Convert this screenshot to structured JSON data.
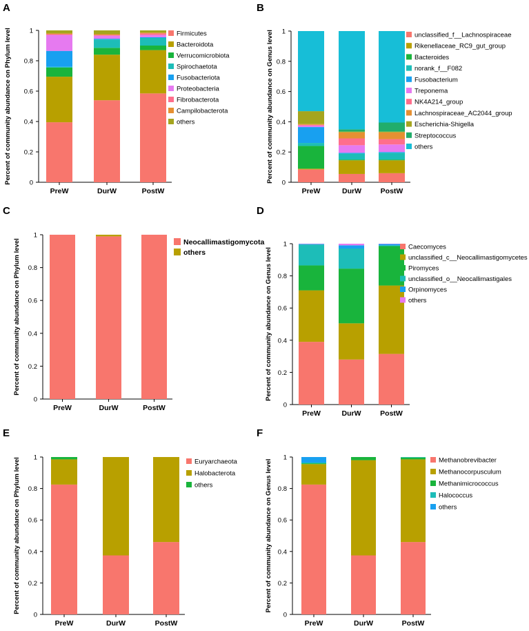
{
  "chart_data": [
    {
      "panel": "A",
      "type": "bar",
      "stacked": true,
      "ylabel": "Percent of community abundance on Phylum level",
      "ylim": [
        0,
        1
      ],
      "yticks": [
        "0",
        "0.2",
        "0.4",
        "0.6",
        "0.8",
        "1"
      ],
      "categories": [
        "PreW",
        "DurW",
        "PostW"
      ],
      "series": [
        {
          "name": "Firmicutes",
          "color": "#F8766D",
          "values": [
            0.395,
            0.54,
            0.585
          ]
        },
        {
          "name": "Bacteroidota",
          "color": "#B8A000",
          "values": [
            0.3,
            0.3,
            0.285
          ]
        },
        {
          "name": "Verrucomicrobiota",
          "color": "#19B43C",
          "values": [
            0.06,
            0.045,
            0.03
          ]
        },
        {
          "name": "Spirochaetota",
          "color": "#1DBDB8",
          "values": [
            0.005,
            0.055,
            0.05
          ]
        },
        {
          "name": "Fusobacteriota",
          "color": "#18A0F0",
          "values": [
            0.105,
            0.005,
            0.005
          ]
        },
        {
          "name": "Proteobacteria",
          "color": "#E67AF0",
          "values": [
            0.105,
            0.02,
            0.015
          ]
        },
        {
          "name": "Fibrobacterota",
          "color": "#FF6E8C",
          "values": [
            0.005,
            0.005,
            0.01
          ]
        },
        {
          "name": "Campilobacterota",
          "color": "#E69032",
          "values": [
            0.005,
            0.005,
            0.005
          ]
        },
        {
          "name": "others",
          "color": "#A5A51E",
          "values": [
            0.02,
            0.025,
            0.015
          ]
        }
      ]
    },
    {
      "panel": "B",
      "type": "bar",
      "stacked": true,
      "ylabel": "Percent of community abundance on Genus level",
      "ylim": [
        0,
        1
      ],
      "yticks": [
        "0",
        "0.2",
        "0.4",
        "0.6",
        "0.8",
        "1"
      ],
      "categories": [
        "PreW",
        "DurW",
        "PostW"
      ],
      "series": [
        {
          "name": "unclassified_f__Lachnospiraceae",
          "color": "#F8766D",
          "values": [
            0.085,
            0.055,
            0.06
          ]
        },
        {
          "name": "Rikenellaceae_RC9_gut_group",
          "color": "#B8A000",
          "values": [
            0.005,
            0.09,
            0.085
          ]
        },
        {
          "name": "Bacteroides",
          "color": "#19B43C",
          "values": [
            0.15,
            0.005,
            0.005
          ]
        },
        {
          "name": "norank_f__F082",
          "color": "#1DBDB8",
          "values": [
            0.02,
            0.04,
            0.045
          ]
        },
        {
          "name": "Fusobacterium",
          "color": "#18A0F0",
          "values": [
            0.105,
            0.005,
            0.005
          ]
        },
        {
          "name": "Treponema",
          "color": "#E67AF0",
          "values": [
            0.01,
            0.05,
            0.05
          ]
        },
        {
          "name": "NK4A214_group",
          "color": "#FF6E8C",
          "values": [
            0.005,
            0.045,
            0.035
          ]
        },
        {
          "name": "Lachnospiraceae_AC2044_group",
          "color": "#E69032",
          "values": [
            0.005,
            0.04,
            0.045
          ]
        },
        {
          "name": "Escherichia-Shigella",
          "color": "#A5A51E",
          "values": [
            0.085,
            0.005,
            0.005
          ]
        },
        {
          "name": "Streptococcus",
          "color": "#21AD6B",
          "values": [
            0.0,
            0.015,
            0.06
          ]
        },
        {
          "name": "others",
          "color": "#17BED7",
          "values": [
            0.53,
            0.65,
            0.605
          ]
        }
      ]
    },
    {
      "panel": "C",
      "type": "bar",
      "stacked": true,
      "ylabel": "Percent of community abundance on Phylum level",
      "ylim": [
        0,
        1
      ],
      "yticks": [
        "0",
        "0.2",
        "0.4",
        "0.6",
        "0.8",
        "1"
      ],
      "categories": [
        "PreW",
        "DurW",
        "PostW"
      ],
      "series": [
        {
          "name": "Neocallimastigomycota",
          "color": "#F8766D",
          "values": [
            1.0,
            0.99,
            1.0
          ]
        },
        {
          "name": "others",
          "color": "#B8A000",
          "values": [
            0.0,
            0.01,
            0.0
          ]
        }
      ]
    },
    {
      "panel": "D",
      "type": "bar",
      "stacked": true,
      "ylabel": "Percent of community abundance on Genus level",
      "ylim": [
        0,
        1
      ],
      "yticks": [
        "0",
        "0.2",
        "0.4",
        "0.6",
        "0.8",
        "1"
      ],
      "categories": [
        "PreW",
        "DurW",
        "PostW"
      ],
      "series": [
        {
          "name": "Caecomyces",
          "color": "#F8766D",
          "values": [
            0.39,
            0.28,
            0.315
          ]
        },
        {
          "name": "unclassified_c__Neocallimastigomycetes",
          "color": "#B8A000",
          "values": [
            0.32,
            0.225,
            0.425
          ]
        },
        {
          "name": "Piromyces",
          "color": "#19B43C",
          "values": [
            0.155,
            0.34,
            0.245
          ]
        },
        {
          "name": "unclassified_o__Neocallimastigales",
          "color": "#1DBDB8",
          "values": [
            0.13,
            0.125,
            0.005
          ]
        },
        {
          "name": "Orpinomyces",
          "color": "#18A0F0",
          "values": [
            0.003,
            0.02,
            0.008
          ]
        },
        {
          "name": "others",
          "color": "#E67AF0",
          "values": [
            0.002,
            0.01,
            0.002
          ]
        }
      ]
    },
    {
      "panel": "E",
      "type": "bar",
      "stacked": true,
      "ylabel": "Percent of community abundance on Phylum level",
      "ylim": [
        0,
        1
      ],
      "yticks": [
        "0",
        "0.2",
        "0.4",
        "0.6",
        "0.8",
        "1"
      ],
      "categories": [
        "PreW",
        "DurW",
        "PostW"
      ],
      "series": [
        {
          "name": "Euryarchaeota",
          "color": "#F8766D",
          "values": [
            0.825,
            0.375,
            0.46
          ]
        },
        {
          "name": "Halobacterota",
          "color": "#B8A000",
          "values": [
            0.16,
            0.625,
            0.54
          ]
        },
        {
          "name": "others",
          "color": "#19B43C",
          "values": [
            0.015,
            0.0,
            0.0
          ]
        }
      ]
    },
    {
      "panel": "F",
      "type": "bar",
      "stacked": true,
      "ylabel": "Percent of community abundance on Genus level",
      "ylim": [
        0,
        1
      ],
      "yticks": [
        "0",
        "0.2",
        "0.4",
        "0.6",
        "0.8",
        "1"
      ],
      "categories": [
        "PreW",
        "DurW",
        "PostW"
      ],
      "series": [
        {
          "name": "Methanobrevibacter",
          "color": "#F8766D",
          "values": [
            0.825,
            0.375,
            0.46
          ]
        },
        {
          "name": "Methanocorpusculum",
          "color": "#B8A000",
          "values": [
            0.13,
            0.605,
            0.525
          ]
        },
        {
          "name": "Methanimicrococcus",
          "color": "#19B43C",
          "values": [
            0.005,
            0.02,
            0.012
          ]
        },
        {
          "name": "Halococcus",
          "color": "#1DBDB8",
          "values": [
            0.005,
            0.0,
            0.003
          ]
        },
        {
          "name": "others",
          "color": "#18A0F0",
          "values": [
            0.035,
            0.0,
            0.0
          ]
        }
      ]
    }
  ]
}
